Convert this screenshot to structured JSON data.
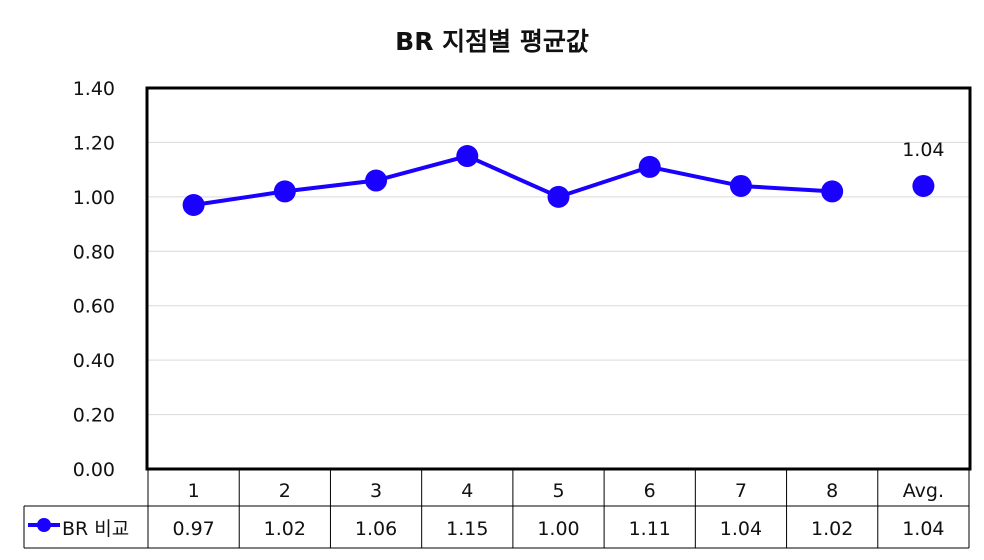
{
  "chart_data": {
    "type": "line",
    "title": "BR 지점별 평균값",
    "categories": [
      "1",
      "2",
      "3",
      "4",
      "5",
      "6",
      "7",
      "8",
      "Avg."
    ],
    "series": [
      {
        "name": "BR 비교",
        "values": [
          0.97,
          1.02,
          1.06,
          1.15,
          1.0,
          1.11,
          1.04,
          1.02,
          1.04
        ],
        "display_values": [
          "0.97",
          "1.02",
          "1.06",
          "1.15",
          "1.00",
          "1.11",
          "1.04",
          "1.02",
          "1.04"
        ],
        "connected_through_index": 7,
        "color": "#1a00ff"
      }
    ],
    "ylim": [
      0,
      1.4
    ],
    "yticks": [
      "0.00",
      "0.20",
      "0.40",
      "0.60",
      "0.80",
      "1.00",
      "1.20",
      "1.40"
    ],
    "ytick_values": [
      0,
      0.2,
      0.4,
      0.6,
      0.8,
      1.0,
      1.2,
      1.4
    ],
    "grid": true,
    "data_labels": [
      {
        "index": 8,
        "text": "1.04"
      }
    ],
    "legend_position": "data-table-left",
    "data_table": true,
    "colors": {
      "line": "#1a00ff",
      "grid": "#d9d9d9",
      "frame": "#000000"
    }
  }
}
